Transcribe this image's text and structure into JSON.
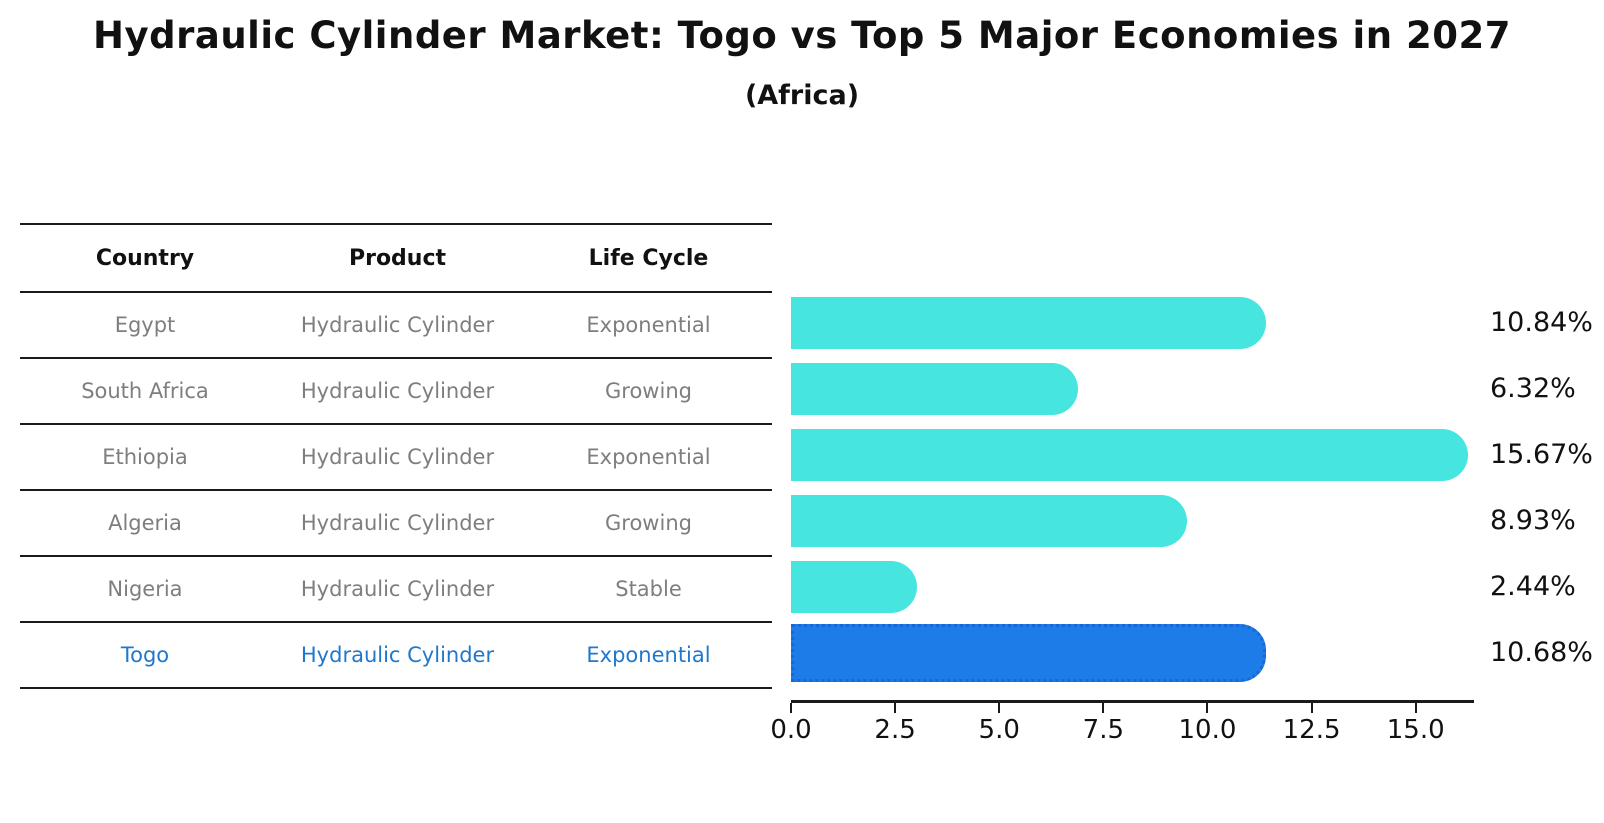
{
  "title": "Hydraulic Cylinder Market: Togo vs Top 5 Major Economies in 2027",
  "subtitle": "(Africa)",
  "table": {
    "headers": [
      "Country",
      "Product",
      "Life Cycle"
    ],
    "rows": [
      {
        "country": "Egypt",
        "product": "Hydraulic Cylinder",
        "life_cycle": "Exponential",
        "highlight": false
      },
      {
        "country": "South Africa",
        "product": "Hydraulic Cylinder",
        "life_cycle": "Growing",
        "highlight": false
      },
      {
        "country": "Ethiopia",
        "product": "Hydraulic Cylinder",
        "life_cycle": "Exponential",
        "highlight": false
      },
      {
        "country": "Algeria",
        "product": "Hydraulic Cylinder",
        "life_cycle": "Growing",
        "highlight": false
      },
      {
        "country": "Nigeria",
        "product": "Hydraulic Cylinder",
        "life_cycle": "Stable",
        "highlight": false
      },
      {
        "country": "Togo",
        "product": "Hydraulic Cylinder",
        "life_cycle": "Exponential",
        "highlight": true
      }
    ]
  },
  "chart_data": {
    "type": "bar",
    "orientation": "horizontal",
    "title": "Hydraulic Cylinder Market: Togo vs Top 5 Major Economies in 2027",
    "subtitle": "(Africa)",
    "categories": [
      "Egypt",
      "South Africa",
      "Ethiopia",
      "Algeria",
      "Nigeria",
      "Togo"
    ],
    "values": [
      10.84,
      6.32,
      15.67,
      8.93,
      2.44,
      10.68
    ],
    "bar_labels": [
      "10.84%",
      "6.32%",
      "15.67%",
      "8.93%",
      "2.44%",
      "10.68%"
    ],
    "x_ticks": [
      "0.0",
      "2.5",
      "5.0",
      "7.5",
      "10.0",
      "12.5",
      "15.0"
    ],
    "xlim": [
      0,
      16.4
    ],
    "xlabel": "",
    "ylabel": "",
    "grid": false,
    "legend": false,
    "highlight_index": 5,
    "bar_color": "#46E5E0",
    "highlight_color": "#1E7CE8",
    "highlight_border_color": "#1668D8",
    "highlight_text_color": "#1F78CC"
  }
}
